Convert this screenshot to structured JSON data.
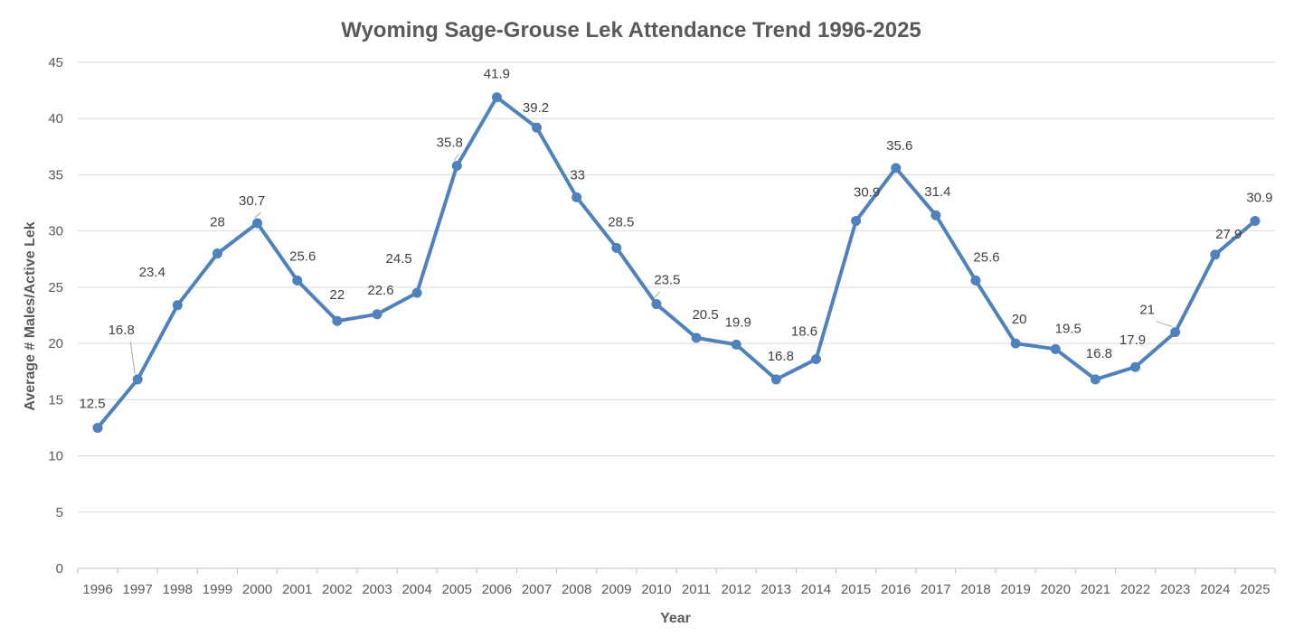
{
  "chart_data": {
    "type": "line",
    "title": "Wyoming Sage-Grouse Lek Attendance Trend 1996-2025",
    "xlabel": "Year",
    "ylabel": "Average # Males/Active Lek",
    "ylim": [
      0,
      45
    ],
    "ytick_step": 5,
    "grid": true,
    "legend": "none",
    "categories": [
      "1996",
      "1997",
      "1998",
      "1999",
      "2000",
      "2001",
      "2002",
      "2003",
      "2004",
      "2005",
      "2006",
      "2007",
      "2008",
      "2009",
      "2010",
      "2011",
      "2012",
      "2013",
      "2014",
      "2015",
      "2016",
      "2017",
      "2018",
      "2019",
      "2020",
      "2021",
      "2022",
      "2023",
      "2024",
      "2025"
    ],
    "series": [
      {
        "name": "Average # Males/Active Lek",
        "color": "#4f81bd",
        "values": [
          12.5,
          16.8,
          23.4,
          28,
          30.7,
          25.6,
          22,
          22.6,
          24.5,
          35.8,
          41.9,
          39.2,
          33,
          28.5,
          23.5,
          20.5,
          19.9,
          16.8,
          18.6,
          30.9,
          35.6,
          31.4,
          25.6,
          20,
          19.5,
          16.8,
          17.9,
          21,
          27.9,
          30.9
        ],
        "labels": [
          "12.5",
          "16.8",
          "23.4",
          "28",
          "30.7",
          "25.6",
          "22",
          "22.6",
          "24.5",
          "35.8",
          "41.9",
          "39.2",
          "33",
          "28.5",
          "23.5",
          "20.5",
          "19.9",
          "16.8",
          "18.6",
          "30.9",
          "35.6",
          "31.4",
          "25.6",
          "20",
          "19.5",
          "16.8",
          "17.9",
          "21",
          "27.9",
          "30.9"
        ]
      }
    ]
  }
}
